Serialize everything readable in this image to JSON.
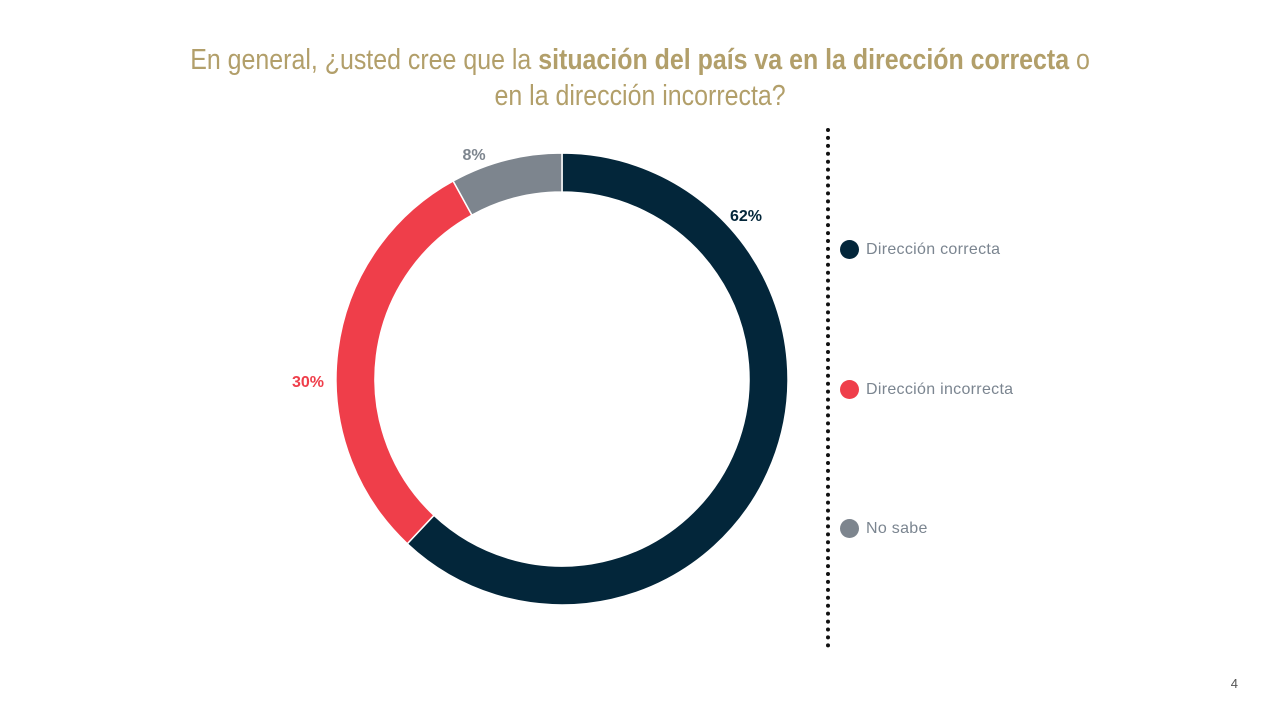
{
  "title": {
    "part1": "En general, ¿usted cree que la ",
    "bold": "situación del país va en la dirección correcta",
    "part2": " o",
    "line2": "en la dirección incorrecta?"
  },
  "chart_data": {
    "type": "pie",
    "donut": true,
    "categories": [
      "Dirección correcta",
      "Dirección incorrecta",
      "No sabe"
    ],
    "values": [
      62,
      30,
      8
    ],
    "labels": [
      "62%",
      "30%",
      "8%"
    ],
    "colors": [
      "#03263a",
      "#ef3e4a",
      "#7d858e"
    ],
    "legend_position": "right"
  },
  "page_number": "4"
}
